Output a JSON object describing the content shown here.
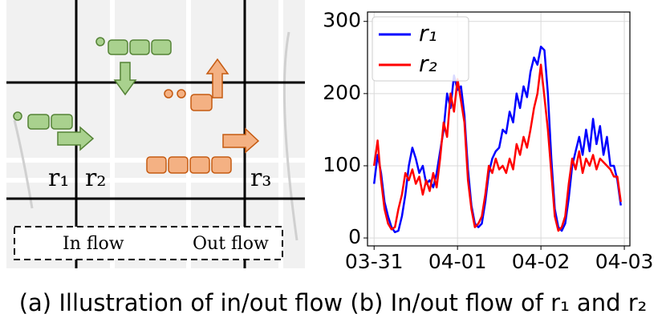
{
  "illustration": {
    "regions": [
      "r₁",
      "r₂",
      "r₃"
    ],
    "legend": [
      "In flow",
      "Out flow"
    ]
  },
  "chart_data": {
    "type": "line",
    "x": [
      0,
      1,
      2,
      3,
      4,
      5,
      6,
      7,
      8,
      9,
      10,
      11,
      12,
      13,
      14,
      15,
      16,
      17,
      18,
      19,
      20,
      21,
      22,
      23,
      24,
      25,
      26,
      27,
      28,
      29,
      30,
      31,
      32,
      33,
      34,
      35,
      36,
      37,
      38,
      39,
      40,
      41,
      42,
      43,
      44,
      45,
      46,
      47,
      48,
      49,
      50,
      51,
      52,
      53,
      54,
      55,
      56,
      57,
      58,
      59,
      60,
      61,
      62,
      63,
      64,
      65,
      66,
      67,
      68,
      69,
      70,
      71
    ],
    "series": [
      {
        "name": "r₁",
        "color": "#0000ff",
        "values": [
          75,
          115,
          90,
          50,
          30,
          15,
          8,
          10,
          30,
          60,
          100,
          125,
          110,
          90,
          100,
          75,
          80,
          70,
          90,
          120,
          150,
          200,
          180,
          225,
          205,
          210,
          170,
          95,
          45,
          20,
          15,
          20,
          50,
          90,
          110,
          120,
          125,
          150,
          145,
          175,
          160,
          200,
          180,
          210,
          195,
          230,
          250,
          240,
          265,
          260,
          200,
          110,
          40,
          15,
          10,
          20,
          55,
          100,
          120,
          140,
          115,
          150,
          120,
          165,
          130,
          155,
          115,
          140,
          100,
          100,
          80,
          45
        ]
      },
      {
        "name": "r₂",
        "color": "#ff0000",
        "values": [
          100,
          135,
          80,
          40,
          20,
          12,
          15,
          40,
          60,
          90,
          80,
          95,
          75,
          85,
          60,
          80,
          65,
          90,
          70,
          110,
          160,
          140,
          200,
          175,
          220,
          190,
          160,
          80,
          40,
          15,
          20,
          30,
          60,
          100,
          90,
          110,
          95,
          100,
          90,
          110,
          95,
          130,
          115,
          140,
          125,
          150,
          180,
          200,
          240,
          195,
          150,
          90,
          30,
          10,
          15,
          30,
          75,
          110,
          95,
          120,
          90,
          110,
          100,
          115,
          95,
          110,
          105,
          100,
          95,
          85,
          85,
          50
        ]
      }
    ],
    "xlim": [
      -1.9,
      73.6
    ],
    "xticks": [
      {
        "value": 0,
        "label": "03-31"
      },
      {
        "value": 24,
        "label": "04-01"
      },
      {
        "value": 48,
        "label": "04-02"
      },
      {
        "value": 72,
        "label": "04-03"
      }
    ],
    "ylim": [
      -11,
      313
    ],
    "yticks": [
      0,
      100,
      200,
      300
    ],
    "grid": true,
    "legend": "upper left"
  },
  "caption": [
    "(a) Illustration of in/out flow",
    "(b) In/out flow of r₁ and r₂"
  ]
}
